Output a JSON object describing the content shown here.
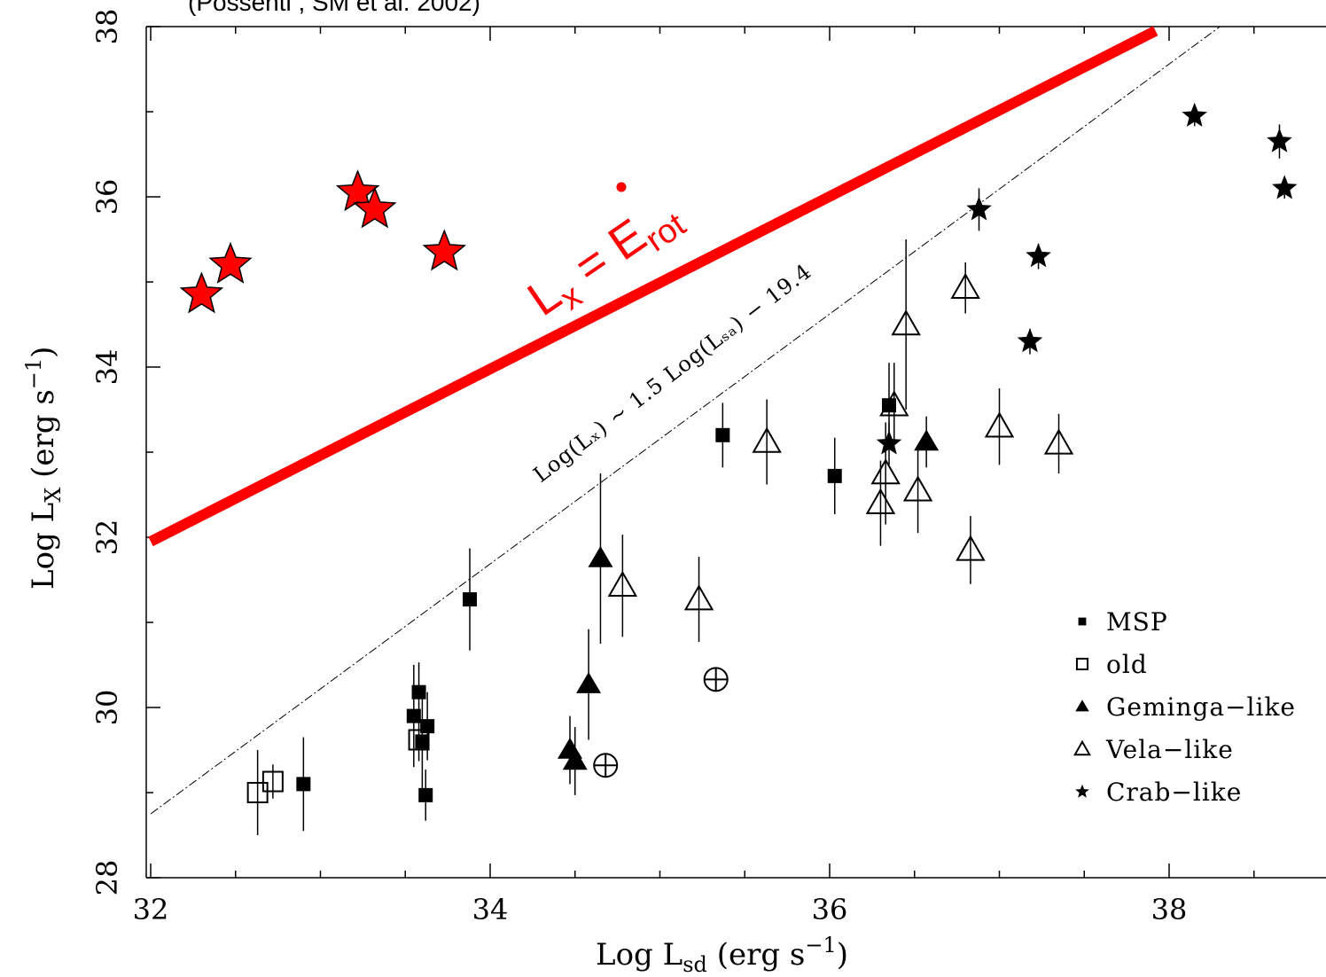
{
  "header": {
    "citation": "(Possenti , SM et al. 2002)"
  },
  "chart_data": {
    "type": "scatter",
    "xlabel": {
      "main": "Log L",
      "sub": "sd",
      "rest": " (erg s",
      "sup": "−1",
      "end": ")"
    },
    "ylabel": {
      "main": "Log L",
      "sub": "X",
      "rest": " (erg s",
      "sup": "−1",
      "end": ")"
    },
    "xlim": [
      32,
      39
    ],
    "ylim": [
      28,
      38
    ],
    "xticks": [
      32,
      34,
      36,
      38
    ],
    "yticks": [
      28,
      30,
      32,
      34,
      36,
      38
    ],
    "xtick_labels": [
      "32",
      "34",
      "36",
      "38"
    ],
    "ytick_labels": [
      "28",
      "30",
      "32",
      "34",
      "36",
      "38"
    ],
    "legend_position": "bottom-right",
    "legend": [
      {
        "label": "MSP",
        "marker": "filled-square"
      },
      {
        "label": "old",
        "marker": "open-square"
      },
      {
        "label": "Geminga−like",
        "marker": "filled-triangle"
      },
      {
        "label": "Vela−like",
        "marker": "open-triangle"
      },
      {
        "label": "Crab−like",
        "marker": "filled-star"
      }
    ],
    "series": [
      {
        "name": "MSP",
        "marker": "filled-square",
        "color": "#000000",
        "points": [
          {
            "x": 32.9,
            "y": 29.1,
            "err": 0.55
          },
          {
            "x": 33.55,
            "y": 29.9,
            "err": 0.6
          },
          {
            "x": 33.58,
            "y": 30.18,
            "err": 0.35
          },
          {
            "x": 33.6,
            "y": 29.6,
            "err": 0.6
          },
          {
            "x": 33.63,
            "y": 29.78,
            "err": 0.4
          },
          {
            "x": 33.62,
            "y": 28.97,
            "err": 0.3
          },
          {
            "x": 33.88,
            "y": 31.27,
            "err": 0.6
          },
          {
            "x": 35.37,
            "y": 33.2,
            "err": 0.38
          },
          {
            "x": 36.03,
            "y": 32.72,
            "err": 0.45
          },
          {
            "x": 36.35,
            "y": 33.55,
            "err": 0.5
          }
        ]
      },
      {
        "name": "old",
        "marker": "open-square",
        "color": "#000000",
        "points": [
          {
            "x": 32.63,
            "y": 29.0,
            "err": 0.5
          },
          {
            "x": 32.72,
            "y": 29.13,
            "err": 0.2
          },
          {
            "x": 33.58,
            "y": 29.62,
            "err": 0.25
          }
        ]
      },
      {
        "name": "Geminga−like",
        "marker": "filled-triangle",
        "color": "#000000",
        "points": [
          {
            "x": 34.47,
            "y": 29.5,
            "err": 0.4
          },
          {
            "x": 34.5,
            "y": 29.37,
            "err": 0.4
          },
          {
            "x": 34.58,
            "y": 30.27,
            "err": 0.65
          },
          {
            "x": 34.65,
            "y": 31.75,
            "err": 1.0
          },
          {
            "x": 36.57,
            "y": 33.12,
            "err": 0.3
          }
        ]
      },
      {
        "name": "Vela−like",
        "marker": "open-triangle",
        "color": "#000000",
        "points": [
          {
            "x": 34.78,
            "y": 31.43,
            "err": 0.6
          },
          {
            "x": 35.23,
            "y": 31.27,
            "err": 0.5
          },
          {
            "x": 35.63,
            "y": 33.12,
            "err": 0.5
          },
          {
            "x": 36.3,
            "y": 32.4,
            "err": 0.5
          },
          {
            "x": 36.33,
            "y": 32.75,
            "err": 0.6
          },
          {
            "x": 36.38,
            "y": 33.55,
            "err": 0.5
          },
          {
            "x": 36.45,
            "y": 34.5,
            "err": 1.0
          },
          {
            "x": 36.52,
            "y": 32.55,
            "err": 0.5
          },
          {
            "x": 36.8,
            "y": 34.93,
            "err": 0.3
          },
          {
            "x": 36.83,
            "y": 31.85,
            "err": 0.4
          },
          {
            "x": 37.0,
            "y": 33.3,
            "err": 0.45
          },
          {
            "x": 37.35,
            "y": 33.1,
            "err": 0.35
          }
        ]
      },
      {
        "name": "Crab−like",
        "marker": "filled-star",
        "color": "#000000",
        "points": [
          {
            "x": 36.35,
            "y": 33.1,
            "err": 0.25
          },
          {
            "x": 36.88,
            "y": 35.85,
            "err": 0.25
          },
          {
            "x": 37.18,
            "y": 34.3,
            "err": 0.15
          },
          {
            "x": 37.23,
            "y": 35.3,
            "err": 0.15
          },
          {
            "x": 38.15,
            "y": 36.95,
            "err": 0.12
          },
          {
            "x": 38.65,
            "y": 36.65,
            "err": 0.2
          },
          {
            "x": 38.68,
            "y": 36.1,
            "err": 0.12
          }
        ]
      },
      {
        "marker": "circle-plus",
        "color": "#000000",
        "points": [
          {
            "x": 34.68,
            "y": 29.32
          },
          {
            "x": 35.33,
            "y": 30.33
          }
        ]
      },
      {
        "marker": "red-star",
        "color": "#ff0000",
        "points": [
          {
            "x": 32.3,
            "y": 34.85
          },
          {
            "x": 32.47,
            "y": 35.2
          },
          {
            "x": 33.22,
            "y": 36.05
          },
          {
            "x": 33.32,
            "y": 35.85
          },
          {
            "x": 33.73,
            "y": 35.35
          }
        ]
      }
    ],
    "lines": [
      {
        "kind": "erot",
        "color": "#ff0000",
        "x": [
          32,
          37.92
        ],
        "y": [
          31.95,
          37.95
        ],
        "label": {
          "main": "L",
          "sub": "x",
          "mid": " = ",
          "e": "E",
          "esub": "rot"
        }
      },
      {
        "kind": "fit",
        "color": "#000000",
        "x": [
          32,
          38.3
        ],
        "y": [
          28.75,
          38.0
        ],
        "label": "Log(Lₓ) ~ 1.5 Log(Lₛₐ) − 19.4"
      }
    ]
  }
}
